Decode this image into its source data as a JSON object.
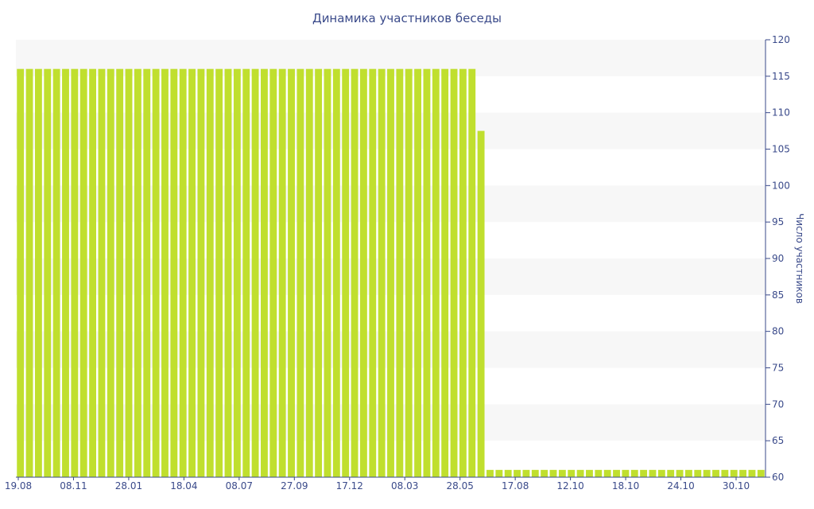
{
  "chart_data": {
    "type": "bar",
    "title": "Динамика участников беседы",
    "ylabel": "Число участников",
    "ylim": [
      60,
      120
    ],
    "y_ticks": [
      60,
      65,
      70,
      75,
      80,
      85,
      90,
      95,
      100,
      105,
      110,
      115,
      120
    ],
    "y_axis_side": "right",
    "x_tick_labels": [
      "19.08",
      "08.11",
      "28.01",
      "18.04",
      "08.07",
      "27.09",
      "17.12",
      "08.03",
      "28.05",
      "17.08",
      "12.10",
      "18.10",
      "24.10",
      "30.10"
    ],
    "values": [
      116,
      116,
      116,
      116,
      116,
      116,
      116,
      116,
      116,
      116,
      116,
      116,
      116,
      116,
      116,
      116,
      116,
      116,
      116,
      116,
      116,
      116,
      116,
      116,
      116,
      116,
      116,
      116,
      116,
      116,
      116,
      116,
      116,
      116,
      116,
      116,
      116,
      116,
      116,
      116,
      116,
      116,
      116,
      116,
      116,
      116,
      116,
      116,
      116,
      116,
      116,
      107.5,
      61,
      61,
      61,
      61,
      61,
      61,
      61,
      61,
      61,
      61,
      61,
      61,
      61,
      61,
      61,
      61,
      61,
      61,
      61,
      61,
      61,
      61,
      61,
      61,
      61,
      61,
      61,
      61,
      61,
      61,
      61
    ],
    "grid": "alternating horizontal bands",
    "colors": {
      "bar": "#c0df2e",
      "band": "#f7f7f7",
      "axis": "#3a4a8a",
      "text": "#3a4a8a"
    }
  }
}
